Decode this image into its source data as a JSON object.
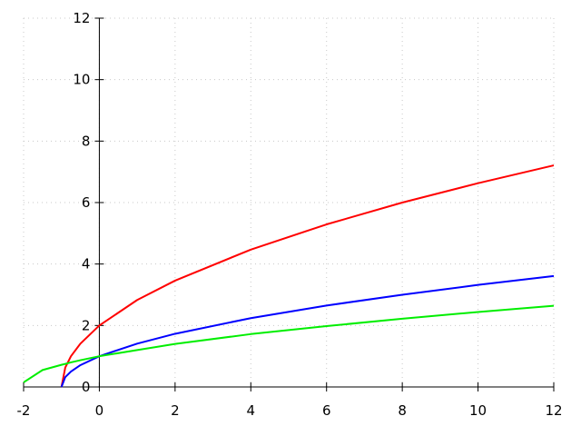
{
  "chart_data": {
    "type": "line",
    "x": [
      -2,
      -1.5,
      -1,
      -0.9,
      -0.75,
      -0.5,
      0,
      1,
      2,
      4,
      6,
      8,
      10,
      12
    ],
    "series": [
      {
        "color": "#ff0000",
        "values": [
          null,
          null,
          0,
          0.63,
          1,
          1.41,
          2,
          2.83,
          3.46,
          4.47,
          5.29,
          6,
          6.63,
          7.21
        ]
      },
      {
        "color": "#0000ff",
        "values": [
          null,
          null,
          0,
          0.32,
          0.5,
          0.71,
          1,
          1.41,
          1.73,
          2.24,
          2.65,
          3,
          3.32,
          3.61
        ]
      },
      {
        "color": "#00ee00",
        "values": [
          0.15,
          0.55,
          0.72,
          0.75,
          0.8,
          0.87,
          1,
          1.2,
          1.4,
          1.72,
          1.98,
          2.22,
          2.44,
          2.64
        ]
      }
    ],
    "xlim": [
      -2,
      12
    ],
    "ylim": [
      0,
      12
    ],
    "xticks": [
      -2,
      0,
      2,
      4,
      6,
      8,
      10,
      12
    ],
    "yticks": [
      0,
      2,
      4,
      6,
      8,
      10,
      12
    ],
    "grid": true
  }
}
